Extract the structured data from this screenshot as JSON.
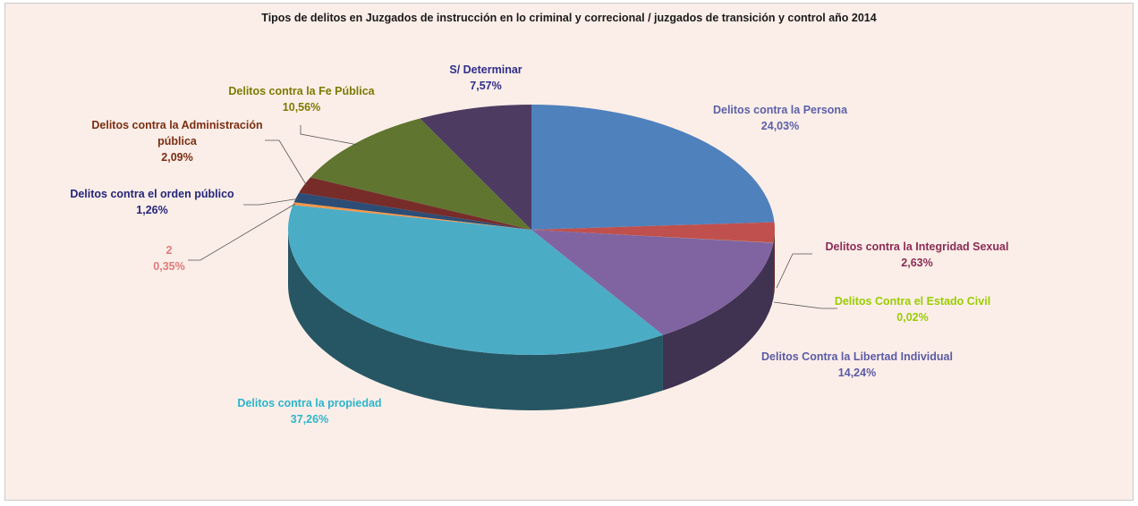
{
  "chart_data": {
    "type": "pie",
    "title": "Tipos de delitos en Juzgados de instrucción en lo criminal y correcional / juzgados de transición y control año 2014",
    "slices": [
      {
        "name": "Delitos contra la Persona",
        "value": 24.03,
        "value_label": "24,03%",
        "color": "#4f81bd",
        "label_color": "#5b61a8"
      },
      {
        "name": "Delitos contra la Integridad Sexual",
        "value": 2.63,
        "value_label": "2,63%",
        "color": "#c0504d",
        "label_color": "#8b2b55"
      },
      {
        "name": "Delitos Contra el Estado Civil",
        "value": 0.02,
        "value_label": "0,02%",
        "color": "#9bbb59",
        "label_color": "#9acd00"
      },
      {
        "name": "Delitos Contra la Libertad Individual",
        "value": 14.24,
        "value_label": "14,24%",
        "color": "#8064a2",
        "label_color": "#5b5ba5"
      },
      {
        "name": "Delitos contra la propiedad",
        "value": 37.26,
        "value_label": "37,26%",
        "color": "#4bacc6",
        "label_color": "#2bb5cc"
      },
      {
        "name": "2",
        "value": 0.35,
        "value_label": "0,35%",
        "color": "#f79646",
        "label_color": "#e07a7a"
      },
      {
        "name": "Delitos contra el orden público",
        "value": 1.26,
        "value_label": "1,26%",
        "color": "#2c4d75",
        "label_color": "#25267a"
      },
      {
        "name": "Delitos contra la Administración pública",
        "value": 2.09,
        "value_label": "2,09%",
        "color": "#772c2a",
        "label_color": "#7b2e12"
      },
      {
        "name": "Delitos contra la  Fe  Pública",
        "value": 10.56,
        "value_label": "10,56%",
        "color": "#5f7530",
        "label_color": "#7c7a00"
      },
      {
        "name": "S/ Determinar",
        "value": 7.57,
        "value_label": "7,57%",
        "color": "#4d3b62",
        "label_color": "#2e2e8c"
      }
    ],
    "labels": [
      {
        "lines": [
          "Delitos contra la Persona"
        ]
      },
      {
        "lines": [
          "Delitos contra la Integridad Sexual"
        ]
      },
      {
        "lines": [
          "Delitos Contra el Estado Civil"
        ]
      },
      {
        "lines": [
          "Delitos Contra la Libertad Individual"
        ]
      },
      {
        "lines": [
          "Delitos contra la propiedad"
        ]
      },
      {
        "lines": [
          "2"
        ]
      },
      {
        "lines": [
          "Delitos contra el orden público"
        ]
      },
      {
        "lines": [
          "Delitos contra la Administración",
          "pública"
        ]
      },
      {
        "lines": [
          "Delitos contra la  Fe  Pública"
        ]
      },
      {
        "lines": [
          "S/ Determinar"
        ]
      }
    ]
  }
}
